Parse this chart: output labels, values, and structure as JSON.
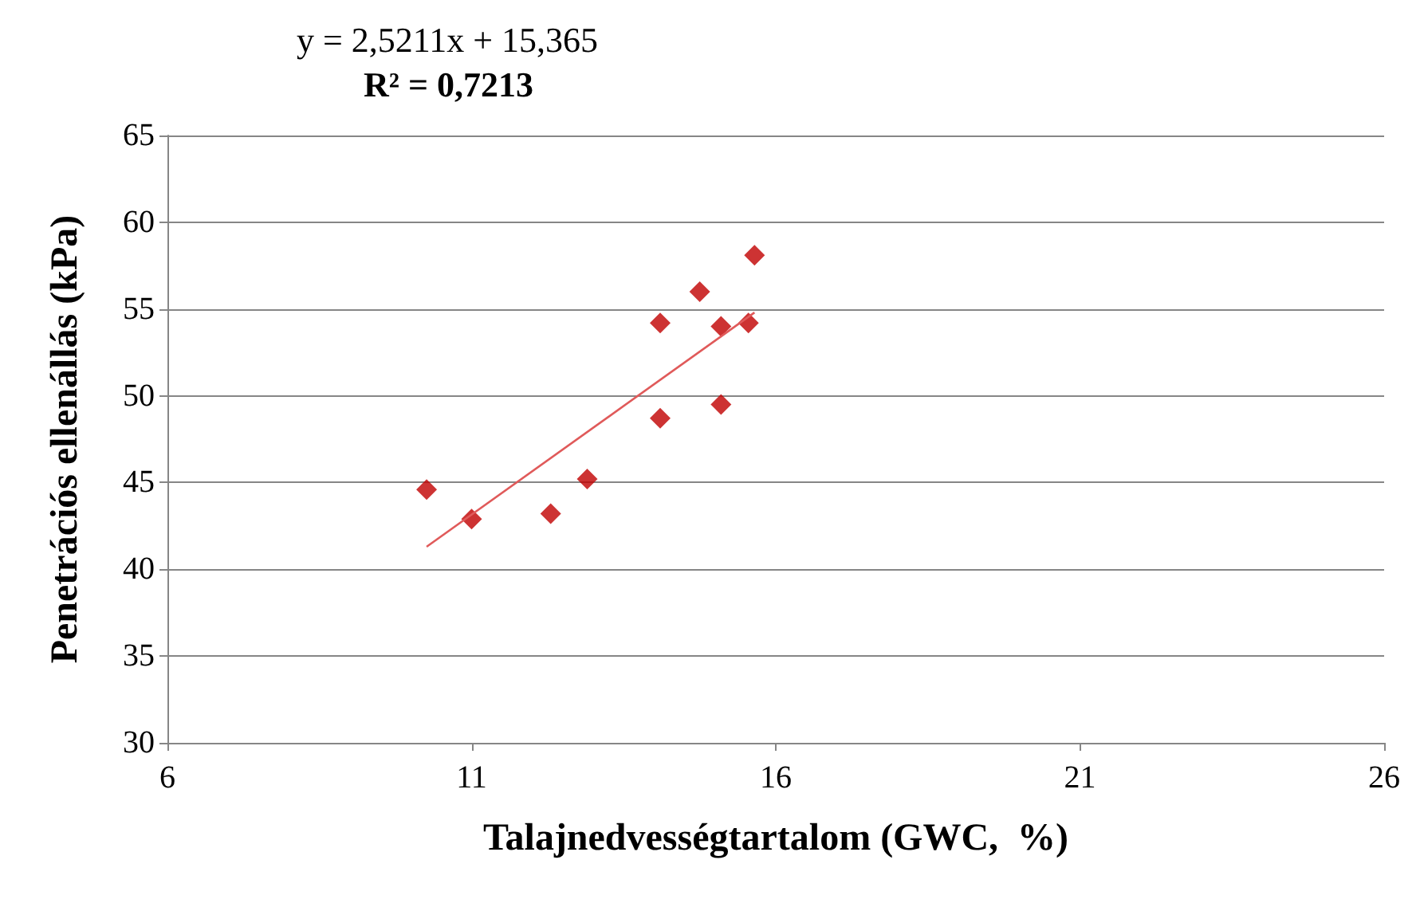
{
  "chart_data": {
    "type": "scatter",
    "xlabel": "Talajnedvességtartalom (GWC,  %)",
    "ylabel": "Penetrációs ellenállás (kPa)",
    "annotations": [
      "y = 2,5211x + 15,365",
      "R² = 0,7213"
    ],
    "series": [
      {
        "color": "#c00000",
        "marker": "diamond",
        "x": [
          10.26,
          11.0,
          12.3,
          12.9,
          14.1,
          14.1,
          14.75,
          15.1,
          15.1,
          15.55,
          15.65
        ],
        "values": [
          44.6,
          42.9,
          43.2,
          45.2,
          54.2,
          48.7,
          56.0,
          54.0,
          49.5,
          54.2,
          58.1
        ]
      },
      {
        "type": "line",
        "color": "#e05a5a",
        "marker": "none",
        "x": [
          10.26,
          15.65
        ],
        "values": [
          41.3,
          54.8
        ]
      }
    ],
    "xlim": [
      6,
      26
    ],
    "xticks": [
      6,
      11,
      16,
      21,
      26
    ],
    "ylim": [
      30,
      65
    ],
    "yticks": [
      30,
      35,
      40,
      45,
      50,
      55,
      60,
      65
    ],
    "grid": "y"
  }
}
